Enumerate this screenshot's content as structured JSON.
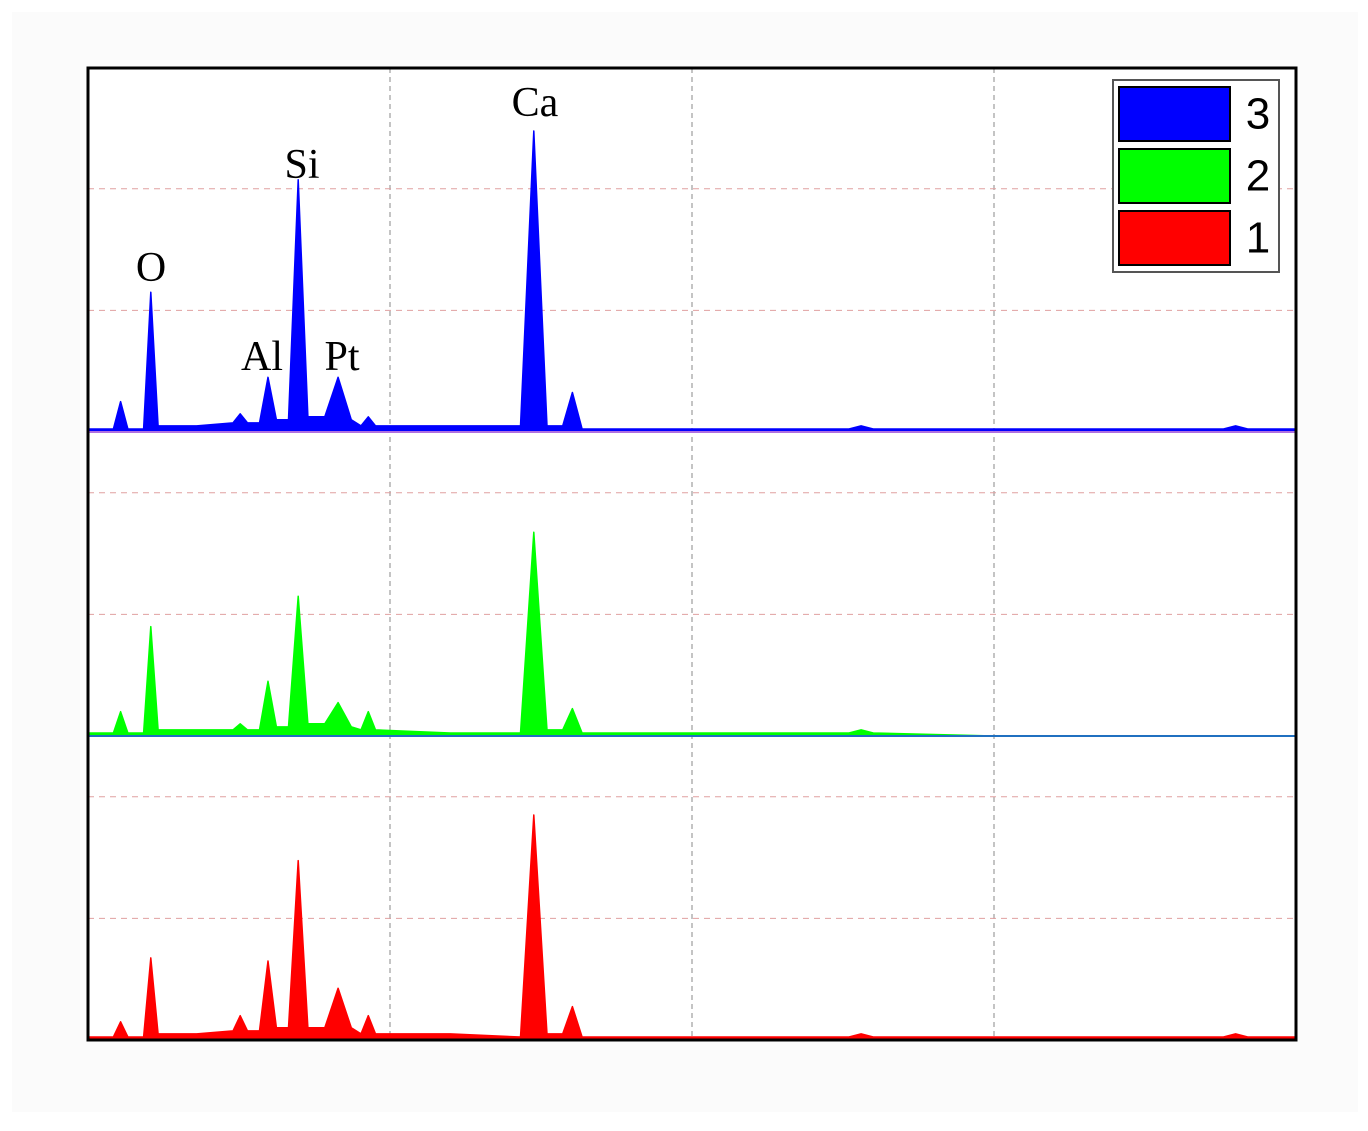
{
  "chart_data": {
    "type": "area",
    "x": [
      0,
      2.1,
      2.7,
      3.3,
      4.6,
      5.2,
      5.8,
      9,
      12,
      12.6,
      13.2,
      14.2,
      14.9,
      15.6,
      16.6,
      17.4,
      18.2,
      19.6,
      20.7,
      21.8,
      22.6,
      23.2,
      23.8,
      30,
      35.8,
      36.9,
      38,
      39.3,
      40.1,
      40.9,
      50,
      63,
      64,
      65,
      75,
      94,
      95,
      96,
      100
    ],
    "xlim": [
      0,
      100
    ],
    "ylim": [
      0,
      100
    ],
    "xticks": [
      25,
      50,
      75
    ],
    "yticks": [
      40,
      80
    ],
    "grid": true,
    "legend": "upper right",
    "series": [
      {
        "name": "1",
        "color": "#ff0000",
        "values": [
          1,
          1,
          6,
          1,
          1,
          27,
          2,
          2,
          3,
          8,
          3,
          3,
          26,
          4,
          4,
          59,
          4,
          4,
          17,
          4,
          2,
          8,
          2,
          2,
          1,
          74,
          2,
          2,
          11,
          1,
          1,
          1,
          2,
          1,
          1,
          1,
          2,
          1,
          1
        ]
      },
      {
        "name": "2",
        "color": "#00ff00",
        "values": [
          1,
          1,
          8,
          1,
          1,
          36,
          2,
          2,
          2,
          4,
          2,
          2,
          18,
          3,
          3,
          46,
          4,
          4,
          11,
          3,
          2,
          8,
          2,
          1,
          1,
          67,
          2,
          2,
          9,
          1,
          1,
          1,
          2,
          1,
          0,
          0,
          0,
          0,
          0
        ]
      },
      {
        "name": "3",
        "color": "#0000ff",
        "values": [
          1,
          1,
          10,
          1,
          1,
          46,
          2,
          2,
          3,
          6,
          3,
          3,
          18,
          4,
          4,
          83,
          5,
          5,
          18,
          4,
          2,
          5,
          2,
          2,
          2,
          99,
          2,
          2,
          13,
          1,
          1,
          1,
          2,
          1,
          1,
          1,
          2,
          1,
          1
        ]
      }
    ],
    "annotations": [
      "O",
      "Al",
      "Si",
      "Pt",
      "Ca"
    ]
  }
}
